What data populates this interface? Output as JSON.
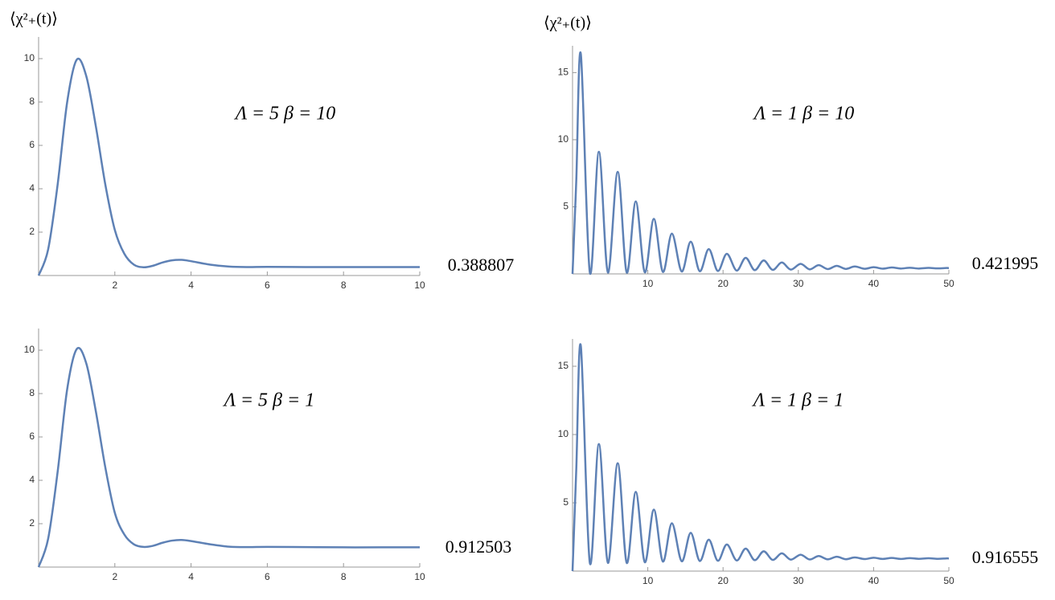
{
  "chart_data": [
    {
      "type": "line",
      "ylabel": "⟨χ²₊(t)⟩",
      "annotation": "Λ = 5    β = 10",
      "limit_label": "0.388807",
      "xlim": [
        0,
        10
      ],
      "ylim": [
        0,
        11
      ],
      "xticks": [
        2,
        4,
        6,
        8,
        10
      ],
      "yticks": [
        2,
        4,
        6,
        8,
        10
      ],
      "series": [
        {
          "color": "#5e81b5",
          "x": [
            0,
            0.25,
            0.5,
            0.75,
            1,
            1.25,
            1.5,
            1.75,
            2,
            2.25,
            2.5,
            2.75,
            3,
            3.25,
            3.5,
            3.75,
            4,
            4.5,
            5,
            5.5,
            6,
            7,
            8,
            9,
            10
          ],
          "values": [
            0,
            1.2,
            4.2,
            8.0,
            9.95,
            9.2,
            6.9,
            4.2,
            2.1,
            1.0,
            0.5,
            0.38,
            0.45,
            0.6,
            0.7,
            0.72,
            0.66,
            0.5,
            0.41,
            0.39,
            0.4,
            0.39,
            0.39,
            0.39,
            0.389
          ]
        }
      ]
    },
    {
      "type": "line",
      "ylabel": "⟨χ²₊(t)⟩",
      "annotation": "Λ = 1    β = 10",
      "limit_label": "0.421995",
      "xlim": [
        0,
        50
      ],
      "ylim": [
        0,
        17
      ],
      "xticks": [
        10,
        20,
        30,
        40,
        50
      ],
      "yticks": [
        5,
        10,
        15
      ],
      "series": [
        {
          "color": "#5e81b5",
          "x": [
            0,
            0.5,
            1.1,
            2.3,
            3.5,
            4.7,
            6.0,
            7.2,
            8.4,
            9.6,
            10.8,
            12.0,
            13.2,
            14.5,
            15.7,
            16.9,
            18.1,
            19.3,
            20.5,
            21.8,
            23.0,
            24.2,
            25.4,
            26.6,
            27.8,
            29.0,
            30.3,
            31.5,
            32.7,
            33.9,
            35.1,
            36.3,
            37.5,
            38.8,
            40.0,
            41.2,
            42.4,
            43.6,
            44.8,
            46.0,
            47.3,
            48.5,
            49.7,
            50
          ],
          "values": [
            0,
            7.0,
            16.4,
            0.1,
            9.1,
            0.1,
            7.6,
            0.1,
            5.4,
            0.12,
            4.1,
            0.15,
            3.0,
            0.18,
            2.4,
            0.2,
            1.85,
            0.22,
            1.5,
            0.25,
            1.2,
            0.28,
            1.0,
            0.3,
            0.85,
            0.32,
            0.75,
            0.34,
            0.65,
            0.36,
            0.6,
            0.37,
            0.55,
            0.38,
            0.5,
            0.39,
            0.48,
            0.4,
            0.46,
            0.4,
            0.45,
            0.41,
            0.44,
            0.43
          ]
        }
      ]
    },
    {
      "type": "line",
      "annotation": "Λ = 5    β = 1",
      "limit_label": "0.912503",
      "xlim": [
        0,
        10
      ],
      "ylim": [
        0,
        11
      ],
      "xticks": [
        2,
        4,
        6,
        8,
        10
      ],
      "yticks": [
        2,
        4,
        6,
        8,
        10
      ],
      "series": [
        {
          "color": "#5e81b5",
          "x": [
            0,
            0.25,
            0.5,
            0.75,
            1,
            1.25,
            1.5,
            1.75,
            2,
            2.25,
            2.5,
            2.75,
            3,
            3.25,
            3.5,
            3.75,
            4,
            4.5,
            5,
            5.5,
            6,
            7,
            8,
            9,
            10
          ],
          "values": [
            0,
            1.3,
            4.4,
            8.2,
            10.05,
            9.4,
            7.2,
            4.6,
            2.5,
            1.5,
            1.05,
            0.93,
            0.98,
            1.12,
            1.22,
            1.25,
            1.2,
            1.05,
            0.94,
            0.92,
            0.93,
            0.92,
            0.91,
            0.91,
            0.91
          ]
        }
      ]
    },
    {
      "type": "line",
      "annotation": "Λ = 1    β = 1",
      "limit_label": "0.916555",
      "xlim": [
        0,
        50
      ],
      "ylim": [
        0,
        17
      ],
      "xticks": [
        10,
        20,
        30,
        40,
        50
      ],
      "yticks": [
        5,
        10,
        15
      ],
      "series": [
        {
          "color": "#5e81b5",
          "x": [
            0,
            0.5,
            1.1,
            2.3,
            3.5,
            4.7,
            6.0,
            7.2,
            8.4,
            9.6,
            10.8,
            12.0,
            13.2,
            14.5,
            15.7,
            16.9,
            18.1,
            19.3,
            20.5,
            21.8,
            23.0,
            24.2,
            25.4,
            26.6,
            27.8,
            29.0,
            30.3,
            31.5,
            32.7,
            33.9,
            35.1,
            36.3,
            37.5,
            38.8,
            40.0,
            41.2,
            42.4,
            43.6,
            44.8,
            46.0,
            47.3,
            48.5,
            49.7,
            50
          ],
          "values": [
            0,
            7.5,
            16.5,
            0.6,
            9.3,
            0.6,
            7.9,
            0.6,
            5.8,
            0.65,
            4.5,
            0.7,
            3.5,
            0.72,
            2.8,
            0.74,
            2.3,
            0.76,
            1.95,
            0.78,
            1.65,
            0.8,
            1.45,
            0.82,
            1.3,
            0.84,
            1.2,
            0.85,
            1.1,
            0.86,
            1.05,
            0.87,
            1.0,
            0.88,
            0.98,
            0.89,
            0.96,
            0.89,
            0.95,
            0.9,
            0.94,
            0.9,
            0.93,
            0.92
          ]
        }
      ]
    }
  ]
}
